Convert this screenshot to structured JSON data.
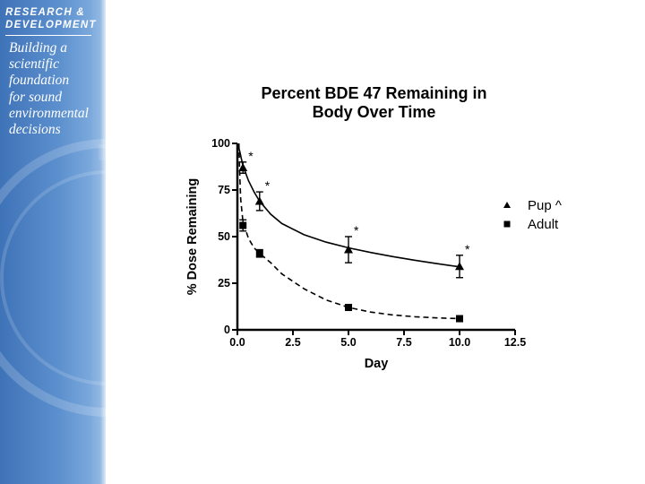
{
  "sidebar": {
    "header_line1": "RESEARCH &",
    "header_line2": "DEVELOPMENT",
    "tagline": [
      "Building a",
      "scientific",
      "foundation",
      "for sound",
      "environmental",
      "decisions"
    ],
    "brand_color": "#4a7fc1"
  },
  "chart_data": {
    "type": "line",
    "title": "Percent BDE 47 Remaining in Body Over Time",
    "title_lines": [
      "Percent BDE 47 Remaining in",
      "Body Over Time"
    ],
    "xlabel": "Day",
    "ylabel": "% Dose Remaining",
    "xlim": [
      0,
      12.5
    ],
    "ylim": [
      0,
      100
    ],
    "xticks": [
      "0.0",
      "2.5",
      "5.0",
      "7.5",
      "10.0",
      "12.5"
    ],
    "yticks": [
      "0",
      "25",
      "50",
      "75",
      "100"
    ],
    "grid": false,
    "legend_position": "right",
    "series": [
      {
        "name": "Pup ^",
        "marker": "triangle",
        "line_style": "solid",
        "points": [
          {
            "x": 0.25,
            "y": 87,
            "err": 3,
            "sig": "*"
          },
          {
            "x": 1.0,
            "y": 69,
            "err": 5,
            "sig": "*"
          },
          {
            "x": 5.0,
            "y": 43,
            "err": 7,
            "sig": "*"
          },
          {
            "x": 10.0,
            "y": 34,
            "err": 6,
            "sig": "*"
          }
        ],
        "curve": [
          [
            0,
            100
          ],
          [
            0.1,
            96
          ],
          [
            0.25,
            88
          ],
          [
            0.5,
            80
          ],
          [
            0.75,
            74
          ],
          [
            1,
            69
          ],
          [
            1.5,
            62
          ],
          [
            2,
            57
          ],
          [
            3,
            51
          ],
          [
            4,
            47
          ],
          [
            5,
            44
          ],
          [
            6,
            41.5
          ],
          [
            7,
            39.3
          ],
          [
            8,
            37.3
          ],
          [
            9,
            35.5
          ],
          [
            10,
            33.8
          ]
        ]
      },
      {
        "name": "Adult",
        "marker": "square",
        "line_style": "dashed",
        "points": [
          {
            "x": 0.25,
            "y": 56,
            "err": 3
          },
          {
            "x": 1.0,
            "y": 41,
            "err": 2
          },
          {
            "x": 5.0,
            "y": 12,
            "err": 1
          },
          {
            "x": 10.0,
            "y": 6,
            "err": 1
          }
        ],
        "curve": [
          [
            0.07,
            100
          ],
          [
            0.1,
            85
          ],
          [
            0.15,
            70
          ],
          [
            0.25,
            58
          ],
          [
            0.5,
            49
          ],
          [
            0.75,
            44
          ],
          [
            1,
            41
          ],
          [
            1.5,
            36
          ],
          [
            2,
            30
          ],
          [
            3,
            22
          ],
          [
            4,
            16
          ],
          [
            5,
            12
          ],
          [
            6,
            9.5
          ],
          [
            7,
            8
          ],
          [
            8,
            7
          ],
          [
            9,
            6.4
          ],
          [
            10,
            6
          ]
        ]
      }
    ]
  }
}
